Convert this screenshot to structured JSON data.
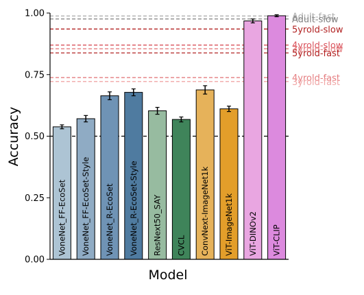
{
  "chart_data": {
    "type": "bar",
    "xlabel": "Model",
    "ylabel": "Accuracy",
    "ylim": [
      0.0,
      1.0
    ],
    "yticks": [
      "0.00",
      "0.25",
      "0.50",
      "0.75",
      "1.00"
    ],
    "ytick_values": [
      0.0,
      0.25,
      0.5,
      0.75,
      1.0
    ],
    "chance_level": 0.5,
    "categories": [
      "VoneNet_FF-EcoSet",
      "VoneNet_FF-EcoSet-Style",
      "VoneNet_R-EcoSet",
      "VoneNet_R-EcoSet-Style",
      "ResNext50_SAY",
      "CVCL",
      "ConvNext-ImageNet1k",
      "ViT-ImageNet1k",
      "ViT-DINOv2",
      "ViT-CLIP"
    ],
    "values": [
      0.538,
      0.571,
      0.664,
      0.678,
      0.603,
      0.568,
      0.688,
      0.611,
      0.968,
      0.989
    ],
    "errors": [
      0.008,
      0.013,
      0.016,
      0.014,
      0.014,
      0.01,
      0.017,
      0.011,
      0.008,
      0.004
    ],
    "colors": [
      "#adc4d4",
      "#8fabc4",
      "#6f93b5",
      "#4f7ba0",
      "#97bba0",
      "#3f845a",
      "#e6b25a",
      "#e39e2a",
      "#e9a6e1",
      "#dc8ade"
    ],
    "reference_lines": [
      {
        "label": "Adult-fast",
        "value": 0.988,
        "color": "#b0b0b0",
        "dash": "5,3"
      },
      {
        "label": "Adult-slow",
        "value": 0.976,
        "color": "#808080",
        "dash": "5,3"
      },
      {
        "label": "5yrold-slow",
        "value": 0.935,
        "color": "#b22222",
        "dash": "5,3"
      },
      {
        "label": "4yrold-slow",
        "value": 0.87,
        "color": "#d9505a",
        "dash": "5,3"
      },
      {
        "label": "3yrold-slow",
        "value": 0.855,
        "color": "#e47c7f",
        "dash": "5,3"
      },
      {
        "label": "5yrold-fast",
        "value": 0.838,
        "color": "#b22222",
        "dash": "5,3"
      },
      {
        "label": "4yrold-fast",
        "value": 0.738,
        "color": "#e47c7f",
        "dash": "5,3"
      },
      {
        "label": "3yrold-fast",
        "value": 0.722,
        "color": "#f0a6a6",
        "dash": "5,3"
      }
    ]
  }
}
